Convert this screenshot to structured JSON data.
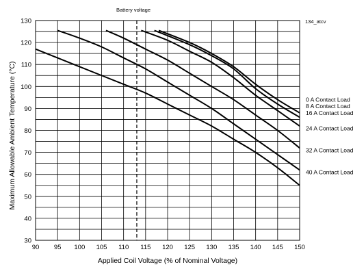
{
  "chart_data": {
    "type": "line",
    "title": "",
    "figure_code": "134_atcv",
    "xlabel": "Applied Coil Voltage (% of Nominal Voltage)",
    "ylabel": "Maximum Allowable Ambient Temperature (°C)",
    "xlim": [
      90,
      150
    ],
    "ylim": [
      30,
      130
    ],
    "x_ticks": [
      90,
      95,
      100,
      105,
      110,
      115,
      120,
      125,
      130,
      135,
      140,
      145,
      150
    ],
    "y_ticks": [
      30,
      40,
      50,
      60,
      70,
      80,
      90,
      100,
      110,
      120,
      130
    ],
    "grid": true,
    "reference_line": {
      "x": 113,
      "style": "dashed",
      "label": "Battery voltage"
    },
    "series": [
      {
        "name": "0 A Contact Load",
        "points": [
          [
            118,
            125.5
          ],
          [
            125,
            120
          ],
          [
            130,
            115
          ],
          [
            135,
            109
          ],
          [
            140,
            101
          ],
          [
            145,
            94
          ],
          [
            150,
            88
          ]
        ]
      },
      {
        "name": "8 A Contact Load",
        "points": [
          [
            117,
            125.5
          ],
          [
            125,
            119
          ],
          [
            130,
            114
          ],
          [
            135,
            108
          ],
          [
            140,
            99
          ],
          [
            145,
            92
          ],
          [
            150,
            86
          ]
        ]
      },
      {
        "name": "16 A Contact Load",
        "points": [
          [
            114,
            125.5
          ],
          [
            120,
            121
          ],
          [
            125,
            116
          ],
          [
            130,
            111
          ],
          [
            135,
            104
          ],
          [
            140,
            96
          ],
          [
            145,
            89
          ],
          [
            150,
            82
          ]
        ]
      },
      {
        "name": "24 A Contact Load",
        "points": [
          [
            106,
            125.5
          ],
          [
            110,
            122
          ],
          [
            115,
            117
          ],
          [
            120,
            112
          ],
          [
            125,
            106
          ],
          [
            130,
            100
          ],
          [
            135,
            94
          ],
          [
            140,
            87
          ],
          [
            145,
            80
          ],
          [
            150,
            72
          ]
        ]
      },
      {
        "name": "32 A Contact Load",
        "points": [
          [
            95,
            125.5
          ],
          [
            100,
            122
          ],
          [
            105,
            118
          ],
          [
            110,
            113
          ],
          [
            115,
            108
          ],
          [
            120,
            102
          ],
          [
            125,
            96
          ],
          [
            130,
            90
          ],
          [
            135,
            83
          ],
          [
            140,
            76
          ],
          [
            145,
            69
          ],
          [
            150,
            62
          ]
        ]
      },
      {
        "name": "40 A Contact Load",
        "points": [
          [
            90,
            117
          ],
          [
            95,
            113
          ],
          [
            100,
            109
          ],
          [
            105,
            105
          ],
          [
            110,
            101
          ],
          [
            115,
            97
          ],
          [
            120,
            92
          ],
          [
            125,
            87
          ],
          [
            130,
            82
          ],
          [
            135,
            76
          ],
          [
            140,
            70
          ],
          [
            145,
            63
          ],
          [
            150,
            55
          ]
        ]
      }
    ],
    "legend_labels": [
      {
        "text": "0 A Contact Load",
        "y": 94
      },
      {
        "text": "8 A Contact Load",
        "y": 91
      },
      {
        "text": "16 A Contact Load",
        "y": 88
      },
      {
        "text": "24 A Contact Load",
        "y": 81
      },
      {
        "text": "32 A Contact Load",
        "y": 71
      },
      {
        "text": "40 A Contact Load",
        "y": 61
      }
    ]
  }
}
